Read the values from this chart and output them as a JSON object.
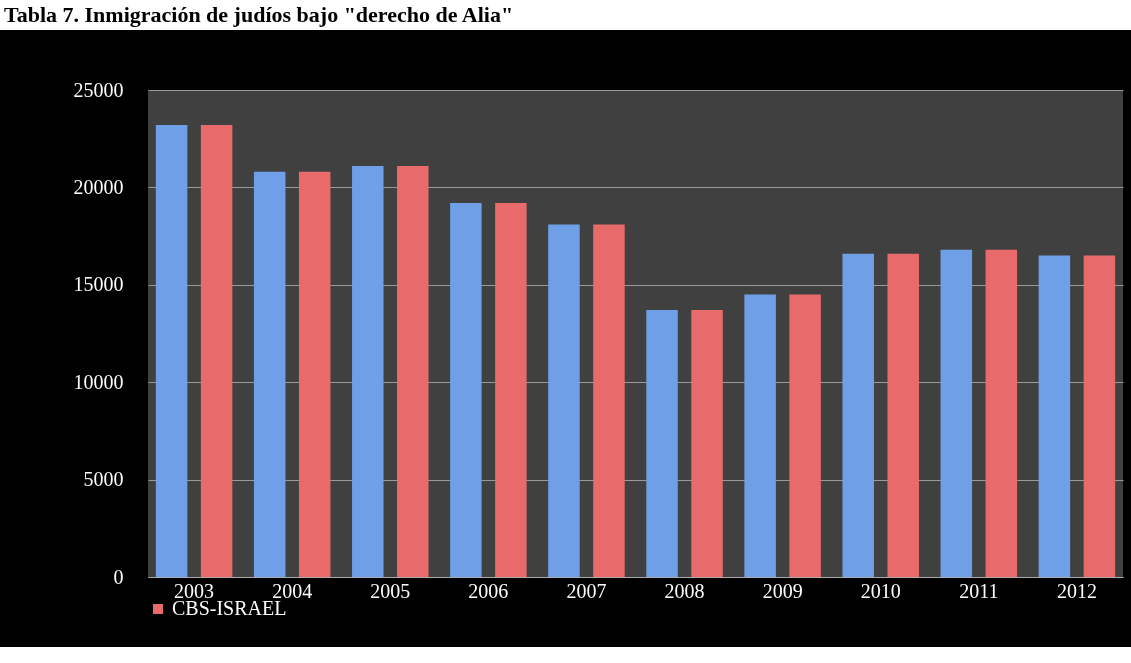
{
  "chart_data": {
    "type": "bar",
    "title": "Tabla 7. Inmigración de judíos bajo \"derecho de Alia\"",
    "categories": [
      "2003",
      "2004",
      "2005",
      "2006",
      "2007",
      "2008",
      "2009",
      "2010",
      "2011",
      "2012"
    ],
    "series": [
      {
        "color": "#6f9fe6",
        "values": [
          23200,
          20800,
          21100,
          19200,
          18100,
          13700,
          14500,
          16600,
          16800,
          16500
        ]
      },
      {
        "name": "CBS-ISRAEL",
        "color": "#e86a6a",
        "values": [
          23200,
          20800,
          21100,
          19200,
          18100,
          13700,
          14500,
          16600,
          16800,
          16500
        ]
      }
    ],
    "ylim": [
      0,
      25000
    ],
    "yticks": [
      0,
      5000,
      10000,
      15000,
      20000,
      25000
    ],
    "grid": "y",
    "legend": "bottom"
  }
}
